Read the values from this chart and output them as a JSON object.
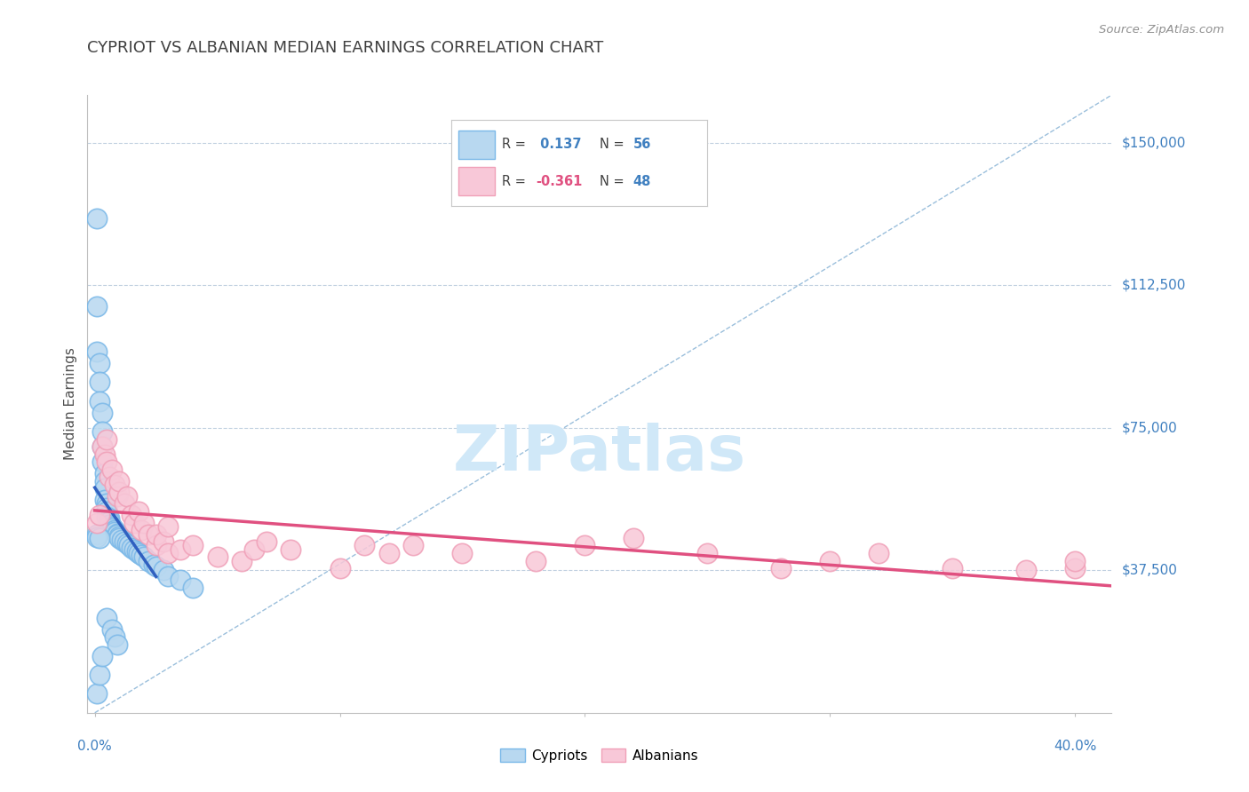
{
  "title": "CYPRIOT VS ALBANIAN MEDIAN EARNINGS CORRELATION CHART",
  "source": "Source: ZipAtlas.com",
  "ylabel_label": "Median Earnings",
  "x_min": -0.003,
  "x_max": 0.415,
  "y_min": 0,
  "y_max": 162500,
  "y_ticks": [
    37500,
    75000,
    112500,
    150000
  ],
  "y_tick_labels": [
    "$37,500",
    "$75,000",
    "$112,500",
    "$150,000"
  ],
  "x_ticks": [
    0.0,
    0.1,
    0.2,
    0.3,
    0.4
  ],
  "legend_R1_label": "R = ",
  "legend_R1_val": " 0.137",
  "legend_N1_label": "N = ",
  "legend_N1_val": "56",
  "legend_R2_label": "R = ",
  "legend_R2_val": "-0.361",
  "legend_N2_label": "N = ",
  "legend_N2_val": "48",
  "cypriot_color": "#7ab8e8",
  "cypriot_fill": "#b8d8f0",
  "albanian_color": "#f0a0b8",
  "albanian_fill": "#f8c8d8",
  "regression_blue": "#3060c0",
  "regression_pink": "#e05080",
  "diagonal_color": "#90b8d8",
  "background_color": "#ffffff",
  "grid_color": "#c0d0e0",
  "title_color": "#404040",
  "source_color": "#909090",
  "axis_val_color": "#4080c0",
  "watermark_color": "#d0e8f8",
  "cypriot_x": [
    0.001,
    0.001,
    0.001,
    0.002,
    0.002,
    0.002,
    0.003,
    0.003,
    0.003,
    0.003,
    0.004,
    0.004,
    0.004,
    0.004,
    0.005,
    0.005,
    0.005,
    0.005,
    0.006,
    0.006,
    0.006,
    0.007,
    0.007,
    0.008,
    0.008,
    0.009,
    0.009,
    0.01,
    0.01,
    0.011,
    0.012,
    0.013,
    0.014,
    0.015,
    0.016,
    0.017,
    0.018,
    0.019,
    0.02,
    0.022,
    0.024,
    0.025,
    0.028,
    0.03,
    0.035,
    0.04,
    0.005,
    0.007,
    0.008,
    0.009,
    0.001,
    0.002,
    0.003,
    0.001,
    0.001,
    0.002
  ],
  "cypriot_y": [
    130000,
    107000,
    95000,
    92000,
    87000,
    82000,
    79000,
    74000,
    70000,
    66000,
    63000,
    61000,
    59000,
    56000,
    55000,
    54000,
    53000,
    51500,
    51000,
    50500,
    49500,
    49000,
    48500,
    48000,
    47500,
    47200,
    47000,
    46500,
    46000,
    45500,
    45000,
    44500,
    44000,
    43500,
    43000,
    42500,
    42000,
    41500,
    41000,
    40000,
    39000,
    38500,
    37500,
    36000,
    35000,
    33000,
    25000,
    22000,
    20000,
    18000,
    5000,
    10000,
    15000,
    46800,
    46200,
    46000
  ],
  "albanian_x": [
    0.001,
    0.002,
    0.003,
    0.004,
    0.005,
    0.005,
    0.006,
    0.007,
    0.008,
    0.009,
    0.01,
    0.01,
    0.012,
    0.013,
    0.015,
    0.016,
    0.018,
    0.019,
    0.02,
    0.022,
    0.025,
    0.025,
    0.028,
    0.03,
    0.03,
    0.035,
    0.04,
    0.05,
    0.06,
    0.065,
    0.07,
    0.08,
    0.1,
    0.11,
    0.12,
    0.13,
    0.15,
    0.18,
    0.2,
    0.22,
    0.25,
    0.28,
    0.3,
    0.32,
    0.35,
    0.38,
    0.4,
    0.4
  ],
  "albanian_y": [
    50000,
    52000,
    70000,
    68000,
    66000,
    72000,
    62000,
    64000,
    60000,
    57000,
    58000,
    61000,
    55000,
    57000,
    52000,
    50000,
    53000,
    48000,
    50000,
    47000,
    44000,
    47000,
    45000,
    42000,
    49000,
    43000,
    44000,
    41000,
    40000,
    43000,
    45000,
    43000,
    38000,
    44000,
    42000,
    44000,
    42000,
    40000,
    44000,
    46000,
    42000,
    38000,
    40000,
    42000,
    38000,
    37500,
    38000,
    40000
  ]
}
